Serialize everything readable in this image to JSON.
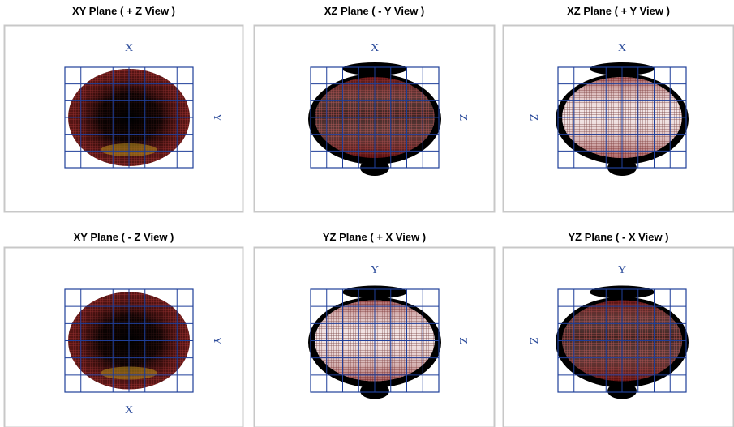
{
  "panels": [
    {
      "title": "XY Plane ( + Z View )",
      "h_label": "X",
      "v_label": "Y"
    },
    {
      "title": "XZ Plane ( - Y View )",
      "h_label": "X",
      "v_label": "Z"
    },
    {
      "title": "XZ Plane ( + Y View )",
      "h_label": "X",
      "v_label": "Z"
    },
    {
      "title": "XY Plane ( - Z View )",
      "h_label": "X",
      "v_label": "Y"
    },
    {
      "title": "YZ Plane ( + X View )",
      "h_label": "Y",
      "v_label": "Z"
    },
    {
      "title": "YZ Plane ( - X View )",
      "h_label": "Y",
      "v_label": "Z"
    }
  ]
}
